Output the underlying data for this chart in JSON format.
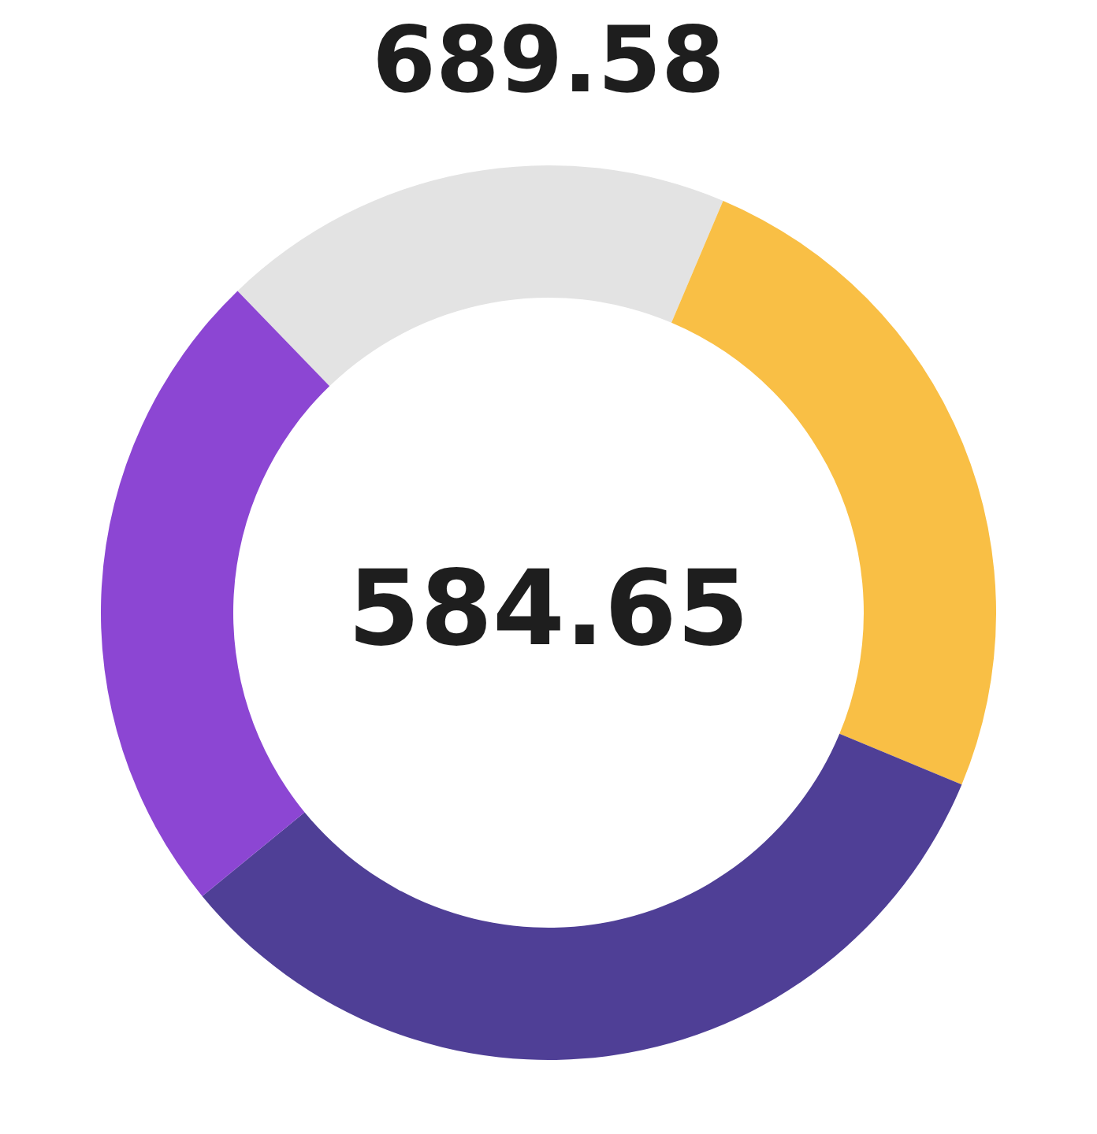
{
  "chart_data": {
    "type": "donut",
    "title": "689.58",
    "annotations": [
      "584.65"
    ],
    "categories": [
      null,
      null,
      null,
      null
    ],
    "values": [
      18.6,
      24.9,
      32.8,
      23.7
    ],
    "colors": [
      "#e3e3e3",
      "#f9bf45",
      "#4f3f96",
      "#8c46d3"
    ],
    "legend": false
  }
}
